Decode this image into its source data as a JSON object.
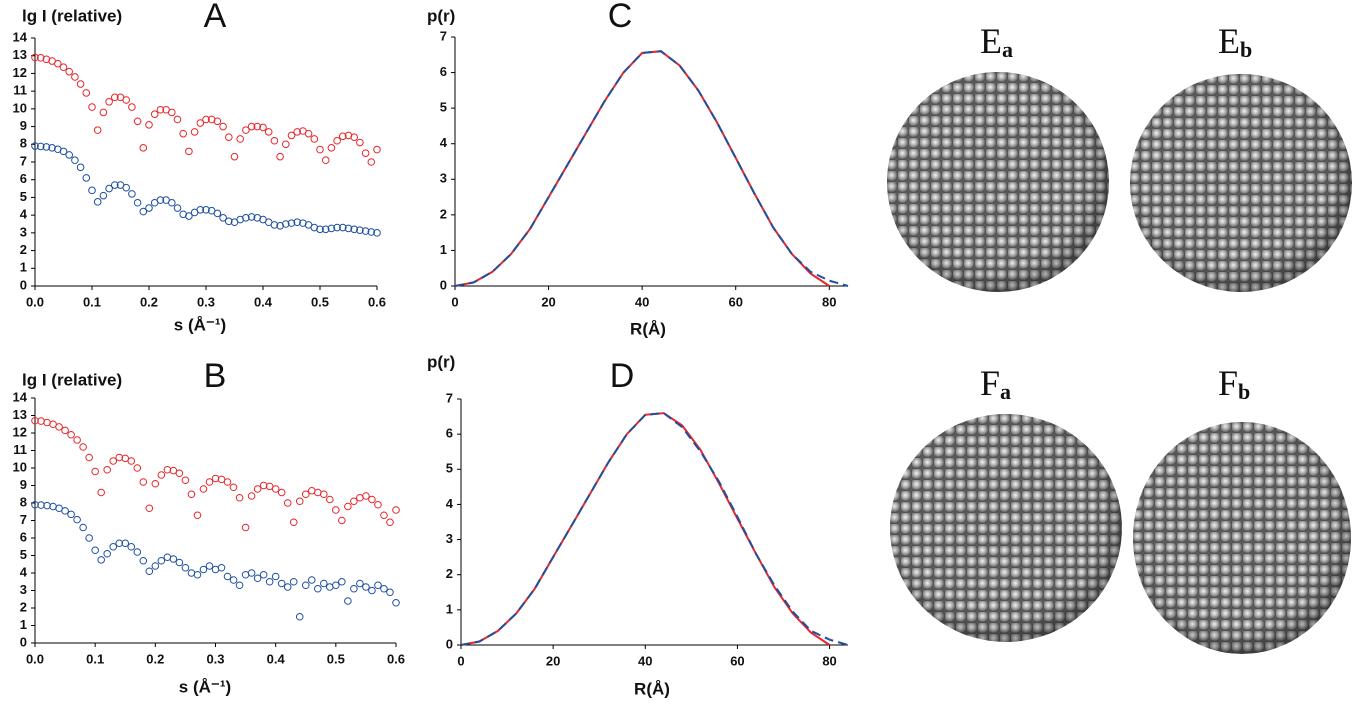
{
  "chart_data": [
    {
      "type": "scatter",
      "title": "A",
      "ylabel": "lg I (relative)",
      "xlabel": "s (Å⁻¹)",
      "x": [
        0,
        0.01,
        0.02,
        0.03,
        0.04,
        0.05,
        0.06,
        0.07,
        0.08,
        0.09,
        0.1,
        0.11,
        0.12,
        0.13,
        0.14,
        0.15,
        0.16,
        0.17,
        0.18,
        0.19,
        0.2,
        0.21,
        0.22,
        0.23,
        0.24,
        0.25,
        0.26,
        0.27,
        0.28,
        0.29,
        0.3,
        0.31,
        0.32,
        0.33,
        0.34,
        0.35,
        0.36,
        0.37,
        0.38,
        0.39,
        0.4,
        0.41,
        0.42,
        0.43,
        0.44,
        0.45,
        0.46,
        0.47,
        0.48,
        0.49,
        0.5,
        0.51,
        0.52,
        0.53,
        0.54,
        0.55,
        0.56,
        0.57,
        0.58,
        0.59,
        0.6
      ],
      "xlim": [
        0,
        0.6
      ],
      "xticks": [
        {
          "value": 0,
          "label": "0.0"
        },
        0.1,
        0.2,
        0.3,
        0.4,
        0.5,
        0.6
      ],
      "ylim": [
        0,
        14
      ],
      "yticks": [
        0,
        1,
        2,
        3,
        4,
        5,
        6,
        7,
        8,
        9,
        10,
        11,
        12,
        13,
        14
      ],
      "series": [
        {
          "color": "#e8262a",
          "values": [
            12.9,
            12.88,
            12.8,
            12.7,
            12.55,
            12.35,
            12.1,
            11.8,
            11.4,
            10.9,
            10.1,
            8.8,
            9.8,
            10.4,
            10.65,
            10.65,
            10.5,
            10.1,
            9.3,
            7.8,
            9.1,
            9.7,
            9.95,
            9.95,
            9.8,
            9.4,
            8.6,
            7.6,
            8.7,
            9.2,
            9.4,
            9.4,
            9.3,
            9.0,
            8.4,
            7.3,
            8.3,
            8.8,
            9.0,
            9.0,
            8.95,
            8.7,
            8.2,
            7.3,
            8.0,
            8.5,
            8.7,
            8.75,
            8.6,
            8.3,
            7.7,
            7.1,
            7.8,
            8.2,
            8.45,
            8.5,
            8.4,
            8.1,
            7.5,
            7.0,
            7.7
          ]
        },
        {
          "color": "#1f4fa0",
          "values": [
            7.9,
            7.88,
            7.85,
            7.8,
            7.72,
            7.6,
            7.4,
            7.1,
            6.7,
            6.1,
            5.4,
            4.75,
            5.1,
            5.5,
            5.7,
            5.7,
            5.55,
            5.2,
            4.7,
            4.2,
            4.4,
            4.7,
            4.85,
            4.85,
            4.7,
            4.4,
            4.05,
            3.95,
            4.15,
            4.3,
            4.3,
            4.25,
            4.1,
            3.85,
            3.65,
            3.6,
            3.75,
            3.85,
            3.9,
            3.85,
            3.75,
            3.6,
            3.45,
            3.4,
            3.5,
            3.55,
            3.6,
            3.55,
            3.45,
            3.3,
            3.2,
            3.2,
            3.25,
            3.3,
            3.3,
            3.25,
            3.2,
            3.15,
            3.1,
            3.05,
            3.0
          ]
        }
      ]
    },
    {
      "type": "scatter",
      "title": "B",
      "ylabel": "lg I (relative)",
      "xlabel": "s (Å⁻¹)",
      "x": [
        0,
        0.01,
        0.02,
        0.03,
        0.04,
        0.05,
        0.06,
        0.07,
        0.08,
        0.09,
        0.1,
        0.11,
        0.12,
        0.13,
        0.14,
        0.15,
        0.16,
        0.17,
        0.18,
        0.19,
        0.2,
        0.21,
        0.22,
        0.23,
        0.24,
        0.25,
        0.26,
        0.27,
        0.28,
        0.29,
        0.3,
        0.31,
        0.32,
        0.33,
        0.34,
        0.35,
        0.36,
        0.37,
        0.38,
        0.39,
        0.4,
        0.41,
        0.42,
        0.43,
        0.44,
        0.45,
        0.46,
        0.47,
        0.48,
        0.49,
        0.5,
        0.51,
        0.52,
        0.53,
        0.54,
        0.55,
        0.56,
        0.57,
        0.58,
        0.59,
        0.6
      ],
      "xlim": [
        0,
        0.6
      ],
      "xticks": [
        {
          "value": 0,
          "label": "0.0"
        },
        0.1,
        0.2,
        0.3,
        0.4,
        0.5,
        0.6
      ],
      "ylim": [
        0,
        14
      ],
      "yticks": [
        0,
        1,
        2,
        3,
        4,
        5,
        6,
        7,
        8,
        9,
        10,
        11,
        12,
        13,
        14
      ],
      "series": [
        {
          "color": "#e8262a",
          "values": [
            12.7,
            12.68,
            12.6,
            12.5,
            12.35,
            12.15,
            11.9,
            11.6,
            11.2,
            10.6,
            9.8,
            8.6,
            9.9,
            10.4,
            10.6,
            10.55,
            10.4,
            10.0,
            9.2,
            7.7,
            9.1,
            9.6,
            9.9,
            9.85,
            9.7,
            9.3,
            8.5,
            7.3,
            8.8,
            9.2,
            9.4,
            9.35,
            9.2,
            8.9,
            8.3,
            6.6,
            8.4,
            8.8,
            9.0,
            8.95,
            8.8,
            8.6,
            8.0,
            6.9,
            8.1,
            8.5,
            8.7,
            8.6,
            8.5,
            8.2,
            7.6,
            7.0,
            7.8,
            8.1,
            8.3,
            8.4,
            8.2,
            7.9,
            7.3,
            6.9,
            7.6
          ]
        },
        {
          "color": "#1f4fa0",
          "values": [
            7.9,
            7.88,
            7.85,
            7.8,
            7.7,
            7.55,
            7.35,
            7.05,
            6.6,
            6.0,
            5.3,
            4.75,
            5.1,
            5.5,
            5.7,
            5.7,
            5.5,
            5.2,
            4.7,
            4.1,
            4.4,
            4.7,
            4.9,
            4.8,
            4.6,
            4.3,
            4.0,
            3.9,
            4.2,
            4.4,
            4.2,
            4.3,
            3.8,
            3.6,
            3.3,
            3.9,
            4.0,
            3.7,
            3.9,
            3.5,
            3.8,
            3.4,
            3.2,
            3.5,
            1.5,
            3.3,
            3.6,
            3.1,
            3.4,
            3.2,
            3.3,
            3.5,
            2.4,
            3.1,
            3.4,
            3.2,
            3.0,
            3.3,
            3.1,
            2.9,
            2.3
          ]
        }
      ]
    },
    {
      "type": "line",
      "title": "C",
      "ylabel": "p(r)",
      "xlabel": "R(Å)",
      "x": [
        0,
        4,
        8,
        12,
        16,
        20,
        24,
        28,
        32,
        36,
        40,
        44,
        48,
        52,
        56,
        60,
        64,
        68,
        72,
        76,
        80,
        84
      ],
      "xlim": [
        0,
        84
      ],
      "xticks": [
        0,
        20,
        40,
        60,
        80
      ],
      "ylim": [
        0,
        7
      ],
      "yticks": [
        0,
        1,
        2,
        3,
        4,
        5,
        6,
        7
      ],
      "series": [
        {
          "color": "#e8262a",
          "line_style": "solid",
          "values": [
            0,
            0.1,
            0.4,
            0.9,
            1.6,
            2.5,
            3.4,
            4.3,
            5.2,
            6.0,
            6.55,
            6.6,
            6.2,
            5.5,
            4.6,
            3.6,
            2.6,
            1.65,
            0.9,
            0.35,
            0,
            null
          ]
        },
        {
          "color": "#1f4fa0",
          "line_style": "dashed",
          "values": [
            0,
            0.1,
            0.4,
            0.9,
            1.6,
            2.5,
            3.4,
            4.3,
            5.2,
            6.0,
            6.55,
            6.6,
            6.2,
            5.5,
            4.6,
            3.6,
            2.6,
            1.65,
            0.9,
            0.4,
            0.15,
            0
          ]
        }
      ]
    },
    {
      "type": "line",
      "title": "D",
      "ylabel": "p(r)",
      "xlabel": "R(Å)",
      "x": [
        0,
        4,
        8,
        12,
        16,
        20,
        24,
        28,
        32,
        36,
        40,
        44,
        48,
        52,
        56,
        60,
        64,
        68,
        72,
        76,
        80,
        84
      ],
      "xlim": [
        0,
        84
      ],
      "xticks": [
        0,
        20,
        40,
        60,
        80
      ],
      "ylim": [
        0,
        7
      ],
      "yticks": [
        0,
        1,
        2,
        3,
        4,
        5,
        6,
        7
      ],
      "series": [
        {
          "color": "#e8262a",
          "line_style": "solid",
          "values": [
            0,
            0.1,
            0.4,
            0.9,
            1.6,
            2.5,
            3.4,
            4.3,
            5.2,
            6.0,
            6.55,
            6.6,
            6.25,
            5.55,
            4.6,
            3.6,
            2.6,
            1.65,
            0.9,
            0.35,
            0,
            null
          ]
        },
        {
          "color": "#1f4fa0",
          "line_style": "dashed",
          "values": [
            0,
            0.1,
            0.4,
            0.9,
            1.6,
            2.5,
            3.4,
            4.3,
            5.2,
            6.0,
            6.55,
            6.6,
            6.2,
            5.5,
            4.65,
            3.65,
            2.6,
            1.7,
            0.95,
            0.4,
            0.15,
            0
          ]
        }
      ]
    }
  ],
  "panels": [
    {
      "label": "E",
      "subscript": "a"
    },
    {
      "label": "E",
      "subscript": "b"
    },
    {
      "label": "F",
      "subscript": "a"
    },
    {
      "label": "F",
      "subscript": "b"
    }
  ]
}
